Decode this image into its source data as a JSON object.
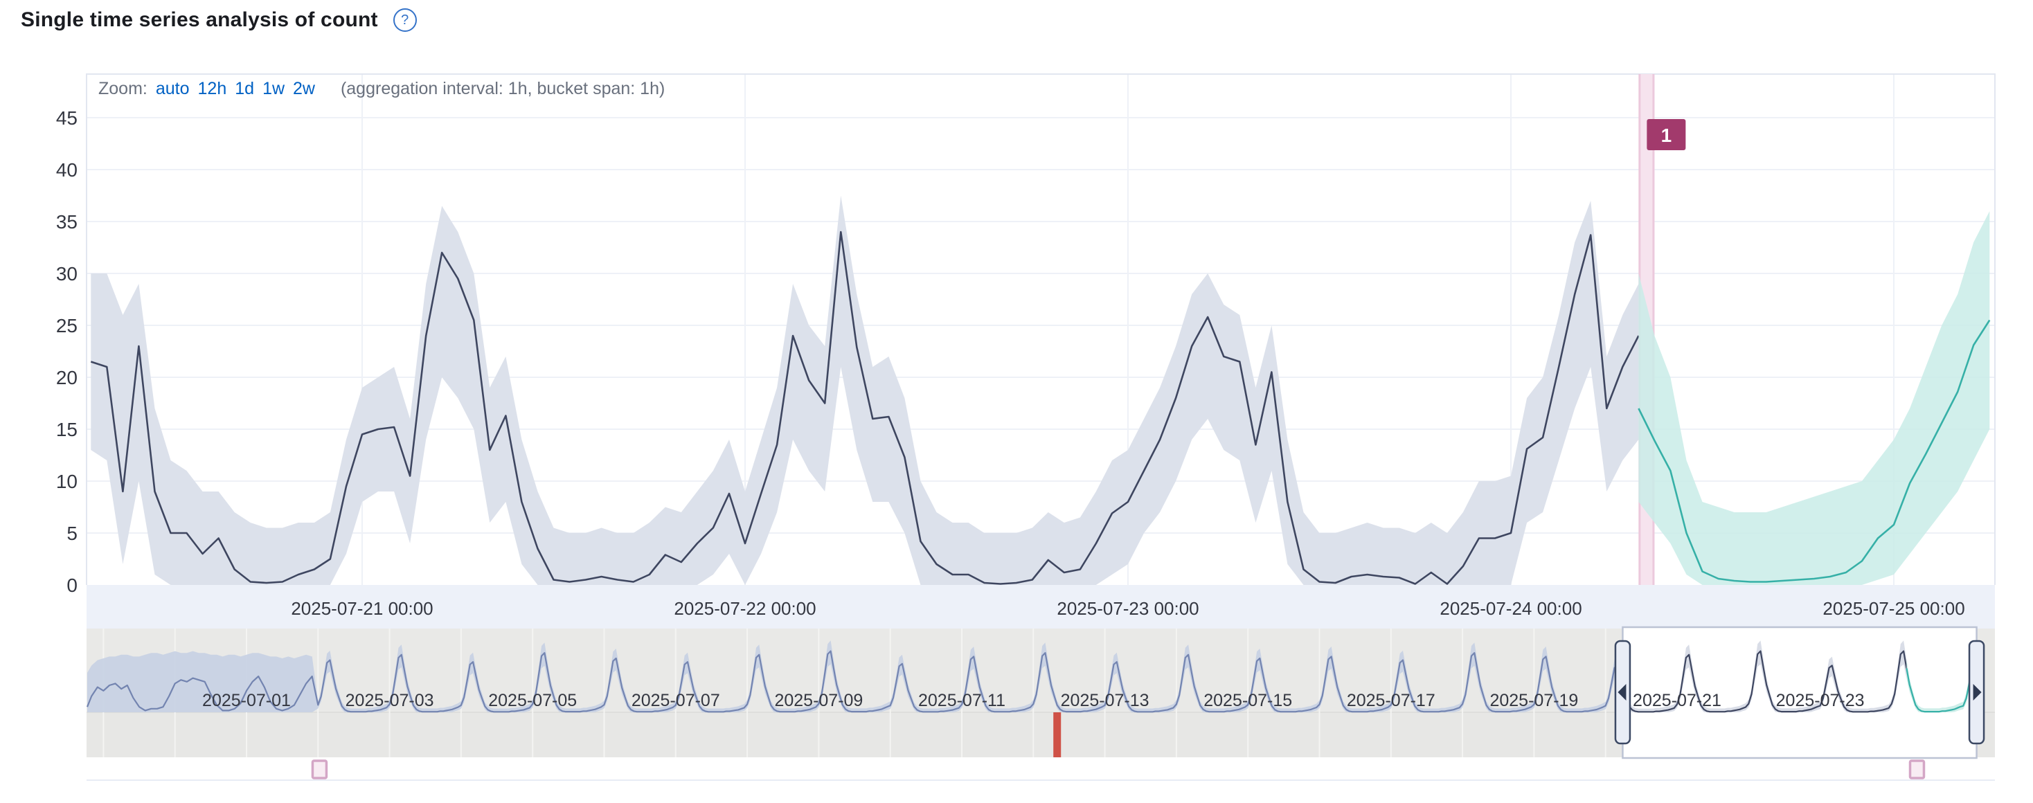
{
  "header": {
    "title": "Single time series analysis of count",
    "help_icon": "?"
  },
  "toolbar": {
    "zoom_label": "Zoom:",
    "zoom_options": [
      "auto",
      "12h",
      "1d",
      "1w",
      "2w"
    ],
    "aggregation_note": "(aggregation interval: 1h, bucket span: 1h)"
  },
  "colors": {
    "actual_line": "#3e4660",
    "model_band": "#dce1eb",
    "forecast_line": "#36b0a7",
    "forecast_band": "#c9ece7",
    "annotation_band": "#f6e3ee",
    "annotation_edge": "#ecc9dc",
    "annotation_badge": "#a23a6c",
    "context_line": "#7384b0",
    "context_band": "#c6d0e3",
    "context_bg": "#e9e9e7",
    "swimlane_bg": "#e7e7e5",
    "anomaly_marker": "#cf5146",
    "marker_border": "#d4a6c6",
    "marker_fill": "#f8ecf3",
    "axis_strip_bg": "#edf1f9",
    "link_color": "#0061c4",
    "muted_text": "#69707d",
    "axis_text": "#343741",
    "grid_color": "#eef1f7",
    "plot_border": "#e2e6f0",
    "brush_border": "#bcc3d4",
    "handle_border": "#3c4964",
    "handle_fill": "#e9edf6",
    "handle_arrow": "#2f3a52"
  },
  "chart_data": {
    "type": "line",
    "title": "Single time series analysis of count",
    "aggregation_interval": "1h",
    "bucket_span": "1h",
    "ylim": [
      0,
      45
    ],
    "y_ticks": [
      0,
      5,
      10,
      15,
      20,
      25,
      30,
      35,
      40,
      45
    ],
    "x_tick_labels": [
      "2025-07-21 00:00",
      "2025-07-22 00:00",
      "2025-07-23 00:00",
      "2025-07-24 00:00",
      "2025-07-25 00:00"
    ],
    "series": [
      {
        "name": "actual",
        "start": "2025-07-20 07:00",
        "interval_hours": 1,
        "values": [
          21.5,
          21,
          9,
          23,
          9,
          5,
          5,
          3,
          4.5,
          1.5,
          0.3,
          0.2,
          0.3,
          1,
          1.5,
          2.5,
          9.5,
          14.5,
          15,
          15.2,
          10.5,
          24,
          32,
          29.5,
          25.5,
          13,
          16.3,
          8,
          3.5,
          0.5,
          0.3,
          0.5,
          0.8,
          0.5,
          0.3,
          1,
          2.9,
          2.2,
          4,
          5.5,
          8.8,
          4,
          8.8,
          13.5,
          24,
          19.7,
          17.5,
          34,
          22.9,
          16,
          16.2,
          12.3,
          4.2,
          2,
          1,
          1,
          0.2,
          0.1,
          0.2,
          0.5,
          2.4,
          1.2,
          1.5,
          4,
          6.9,
          8,
          11,
          14,
          18,
          23,
          25.8,
          22,
          21.5,
          13.5,
          20.5,
          8,
          1.5,
          0.3,
          0.2,
          0.8,
          1,
          0.8,
          0.7,
          0.1,
          1.2,
          0.1,
          1.8,
          4.5,
          4.5,
          5,
          13.1,
          14.2,
          21,
          28,
          33.7,
          17,
          21,
          24
        ]
      },
      {
        "name": "model_lower",
        "start": "2025-07-20 07:00",
        "interval_hours": 1,
        "values": [
          13,
          12,
          2,
          10,
          1,
          0,
          0,
          0,
          0,
          0,
          0,
          0,
          0,
          0,
          0,
          0,
          3,
          8,
          9,
          9,
          4,
          14,
          20,
          18,
          15,
          6,
          8,
          2,
          0,
          0,
          0,
          0,
          0,
          0,
          0,
          0,
          0,
          0,
          0,
          1,
          3,
          0,
          3,
          7,
          14,
          11,
          9,
          21,
          13,
          8,
          8,
          5,
          0,
          0,
          0,
          0,
          0,
          0,
          0,
          0,
          0,
          0,
          0,
          0,
          1,
          2,
          5,
          7,
          10,
          14,
          16,
          13,
          12,
          6,
          11,
          2,
          0,
          0,
          0,
          0,
          0,
          0,
          0,
          0,
          0,
          0,
          0,
          0,
          0,
          0,
          6,
          7,
          12,
          17,
          21,
          9,
          12,
          14
        ]
      },
      {
        "name": "model_upper",
        "start": "2025-07-20 07:00",
        "interval_hours": 1,
        "values": [
          30,
          30,
          26,
          29,
          17,
          12,
          11,
          9,
          9,
          7,
          6,
          5.5,
          5.5,
          6,
          6,
          7,
          14,
          19,
          20,
          21,
          16,
          29,
          36.5,
          34,
          30,
          19,
          22,
          14,
          9,
          5.5,
          5,
          5,
          5.5,
          5,
          5,
          6,
          7.5,
          7,
          9,
          11,
          14,
          9,
          14,
          19,
          29,
          25,
          23,
          37.5,
          28,
          21,
          22,
          18,
          10,
          7,
          6,
          6,
          5,
          5,
          5,
          5.5,
          7,
          6,
          6.5,
          9,
          12,
          13,
          16,
          19,
          23,
          28,
          30,
          27,
          26,
          19,
          25,
          14,
          7,
          5,
          5,
          5.5,
          6,
          5.5,
          5.5,
          5,
          6,
          5,
          7,
          10,
          10,
          10.5,
          18,
          20,
          26,
          33,
          37,
          22,
          26,
          29
        ]
      },
      {
        "name": "forecast",
        "start": "2025-07-24 08:00",
        "interval_hours": 1,
        "values": [
          17,
          13.9,
          11,
          5,
          1.3,
          0.6,
          0.4,
          0.3,
          0.3,
          0.4,
          0.5,
          0.6,
          0.8,
          1.2,
          2.3,
          4.5,
          5.8,
          9.8,
          12.6,
          15.6,
          18.6,
          23.1,
          25.5
        ]
      },
      {
        "name": "forecast_lower",
        "start": "2025-07-24 08:00",
        "interval_hours": 1,
        "values": [
          8,
          6,
          4,
          1,
          0,
          0,
          0,
          0,
          0,
          0,
          0,
          0,
          0,
          0,
          0,
          0.5,
          1,
          3,
          5,
          7,
          9,
          12,
          15
        ]
      },
      {
        "name": "forecast_upper",
        "start": "2025-07-24 08:00",
        "interval_hours": 1,
        "values": [
          30,
          24,
          20,
          12,
          8,
          7.5,
          7,
          7,
          7,
          7.5,
          8,
          8.5,
          9,
          9.5,
          10,
          12,
          14,
          17,
          21,
          25,
          28,
          33,
          36
        ]
      }
    ],
    "annotations": [
      {
        "label": "1",
        "start": "2025-07-24 08:00",
        "end": "2025-07-24 09:00"
      }
    ]
  },
  "context_chart": {
    "range": {
      "start": "2025-06-28 18:00",
      "end": "2025-07-25 05:00"
    },
    "day_tick_labels": [
      "2025-07-01",
      "2025-07-03",
      "2025-07-05",
      "2025-07-07",
      "2025-07-09",
      "2025-07-11",
      "2025-07-13",
      "2025-07-15",
      "2025-07-17",
      "2025-07-19",
      "2025-07-21",
      "2025-07-23"
    ],
    "pre": {
      "start": "2025-06-28 18:00",
      "interval_hours": 2,
      "line": [
        3,
        9,
        14,
        12,
        15,
        16,
        13,
        15,
        8,
        3,
        1,
        2,
        2,
        3,
        9,
        16,
        18,
        17,
        19,
        18,
        17,
        10,
        4,
        1,
        1,
        2,
        5,
        12,
        17,
        20,
        14,
        6,
        2,
        1,
        2,
        4,
        10,
        16,
        20
      ],
      "upper": [
        22,
        26,
        29,
        30,
        31,
        31,
        32,
        32,
        31,
        31,
        32,
        33,
        33,
        32,
        33,
        34,
        33,
        33,
        34,
        33,
        33,
        32,
        32,
        31,
        32,
        32,
        31,
        32,
        33,
        33,
        32,
        31,
        31,
        30,
        31,
        30,
        31,
        32,
        31
      ]
    },
    "daily": {
      "first_day": "2025-07-02 00:00",
      "end": "2025-07-25 05:00",
      "peaks": [
        29,
        32,
        28,
        33,
        30,
        28,
        32,
        34,
        27,
        31,
        33,
        28,
        32,
        30,
        31,
        29,
        33,
        31,
        26,
        32,
        34,
        26,
        34,
        25.5
      ],
      "template": [
        0.14,
        0.3,
        0.62,
        0.95,
        1,
        0.72,
        0.45,
        0.28,
        0.12,
        0.05,
        0.02,
        0.01,
        0.01,
        0.01,
        0.01,
        0.01,
        0.01,
        0.02,
        0.02,
        0.03,
        0.04,
        0.05,
        0.07,
        0.09
      ]
    },
    "forecast_start": "2025-07-24 06:00",
    "brush": {
      "start": "2025-07-20 05:45",
      "end": "2025-07-25 04:30"
    },
    "anomaly_marker": {
      "time": "2025-07-12 08:00"
    },
    "annotation_markers": [
      "2025-07-02 00:30",
      "2025-07-24 08:30"
    ]
  }
}
